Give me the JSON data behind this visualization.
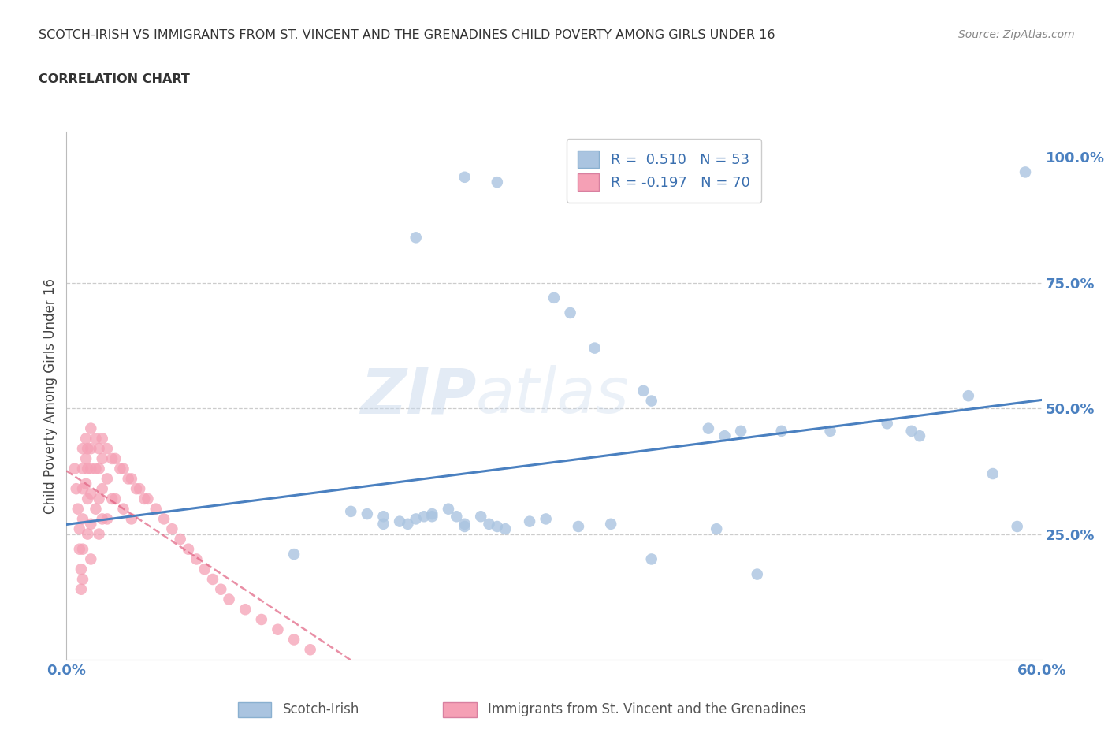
{
  "title": "SCOTCH-IRISH VS IMMIGRANTS FROM ST. VINCENT AND THE GRENADINES CHILD POVERTY AMONG GIRLS UNDER 16",
  "subtitle": "CORRELATION CHART",
  "source": "Source: ZipAtlas.com",
  "ylabel": "Child Poverty Among Girls Under 16",
  "xlim": [
    0.0,
    0.6
  ],
  "ylim": [
    0.0,
    1.05
  ],
  "blue_R": 0.51,
  "blue_N": 53,
  "pink_R": -0.197,
  "pink_N": 70,
  "blue_color": "#aac4e0",
  "pink_color": "#f5a0b5",
  "blue_line_color": "#4a80c0",
  "pink_line_color": "#e06080",
  "legend_blue_label": "Scotch-Irish",
  "legend_pink_label": "Immigrants from St. Vincent and the Grenadines",
  "watermark_zip": "ZIP",
  "watermark_atlas": "atlas",
  "blue_scatter_x": [
    0.245,
    0.265,
    0.215,
    0.3,
    0.31,
    0.325,
    0.355,
    0.36,
    0.395,
    0.405,
    0.415,
    0.44,
    0.47,
    0.505,
    0.52,
    0.525,
    0.555,
    0.57,
    0.585,
    0.14,
    0.175,
    0.185,
    0.195,
    0.195,
    0.205,
    0.21,
    0.215,
    0.22,
    0.225,
    0.225,
    0.235,
    0.24,
    0.245,
    0.245,
    0.255,
    0.26,
    0.265,
    0.27,
    0.285,
    0.295,
    0.315,
    0.335,
    0.36,
    0.4,
    0.425,
    0.59
  ],
  "blue_scatter_y": [
    0.96,
    0.95,
    0.84,
    0.72,
    0.69,
    0.62,
    0.535,
    0.515,
    0.46,
    0.445,
    0.455,
    0.455,
    0.455,
    0.47,
    0.455,
    0.445,
    0.525,
    0.37,
    0.265,
    0.21,
    0.295,
    0.29,
    0.285,
    0.27,
    0.275,
    0.27,
    0.28,
    0.285,
    0.29,
    0.285,
    0.3,
    0.285,
    0.27,
    0.265,
    0.285,
    0.27,
    0.265,
    0.26,
    0.275,
    0.28,
    0.265,
    0.27,
    0.2,
    0.26,
    0.17,
    0.97
  ],
  "pink_scatter_x": [
    0.005,
    0.006,
    0.007,
    0.008,
    0.008,
    0.009,
    0.009,
    0.01,
    0.01,
    0.01,
    0.01,
    0.01,
    0.01,
    0.012,
    0.012,
    0.012,
    0.013,
    0.013,
    0.013,
    0.013,
    0.015,
    0.015,
    0.015,
    0.015,
    0.015,
    0.015,
    0.018,
    0.018,
    0.018,
    0.02,
    0.02,
    0.02,
    0.02,
    0.022,
    0.022,
    0.022,
    0.022,
    0.025,
    0.025,
    0.025,
    0.028,
    0.028,
    0.03,
    0.03,
    0.033,
    0.035,
    0.035,
    0.038,
    0.04,
    0.04,
    0.043,
    0.045,
    0.048,
    0.05,
    0.055,
    0.06,
    0.065,
    0.07,
    0.075,
    0.08,
    0.085,
    0.09,
    0.095,
    0.1,
    0.11,
    0.12,
    0.13,
    0.14,
    0.15
  ],
  "pink_scatter_y": [
    0.38,
    0.34,
    0.3,
    0.26,
    0.22,
    0.18,
    0.14,
    0.42,
    0.38,
    0.34,
    0.28,
    0.22,
    0.16,
    0.44,
    0.4,
    0.35,
    0.42,
    0.38,
    0.32,
    0.25,
    0.46,
    0.42,
    0.38,
    0.33,
    0.27,
    0.2,
    0.44,
    0.38,
    0.3,
    0.42,
    0.38,
    0.32,
    0.25,
    0.44,
    0.4,
    0.34,
    0.28,
    0.42,
    0.36,
    0.28,
    0.4,
    0.32,
    0.4,
    0.32,
    0.38,
    0.38,
    0.3,
    0.36,
    0.36,
    0.28,
    0.34,
    0.34,
    0.32,
    0.32,
    0.3,
    0.28,
    0.26,
    0.24,
    0.22,
    0.2,
    0.18,
    0.16,
    0.14,
    0.12,
    0.1,
    0.08,
    0.06,
    0.04,
    0.02
  ],
  "background_color": "#ffffff",
  "grid_color": "#cccccc"
}
